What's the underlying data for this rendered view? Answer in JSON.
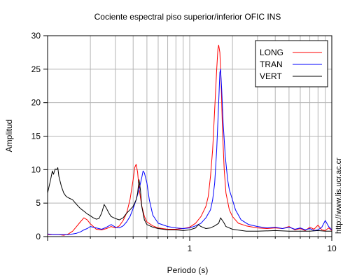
{
  "chart_data": {
    "type": "line",
    "title": "Cociente espectral piso superior/inferior  OFIC INS",
    "xlabel": "Periodo (s)",
    "ylabel": "Amplitud",
    "xscale": "log",
    "xlim": [
      0.1,
      10
    ],
    "ylim": [
      0,
      30
    ],
    "x_tick_labels": [
      {
        "value": 1,
        "label": "1"
      },
      {
        "value": 10,
        "label": "10"
      }
    ],
    "y_ticks": [
      0,
      5,
      10,
      15,
      20,
      25,
      30
    ],
    "grid": true,
    "legend": {
      "placement": "top-right"
    },
    "credit": "http://www.lis.ucr.ac.cr",
    "series": [
      {
        "name": "LONG",
        "color": "#ff0000",
        "points": [
          [
            0.1,
            0.3
          ],
          [
            0.11,
            0.3
          ],
          [
            0.12,
            0.3
          ],
          [
            0.13,
            0.2
          ],
          [
            0.14,
            0.4
          ],
          [
            0.15,
            0.8
          ],
          [
            0.16,
            1.5
          ],
          [
            0.17,
            2.2
          ],
          [
            0.18,
            2.8
          ],
          [
            0.19,
            2.5
          ],
          [
            0.2,
            1.9
          ],
          [
            0.21,
            1.5
          ],
          [
            0.22,
            1.1
          ],
          [
            0.24,
            1.0
          ],
          [
            0.26,
            1.2
          ],
          [
            0.28,
            1.5
          ],
          [
            0.3,
            1.3
          ],
          [
            0.32,
            1.6
          ],
          [
            0.34,
            2.4
          ],
          [
            0.36,
            3.5
          ],
          [
            0.38,
            5.5
          ],
          [
            0.4,
            8.5
          ],
          [
            0.41,
            10.3
          ],
          [
            0.42,
            10.8
          ],
          [
            0.43,
            9.6
          ],
          [
            0.44,
            7.2
          ],
          [
            0.46,
            4.6
          ],
          [
            0.48,
            3.0
          ],
          [
            0.5,
            2.2
          ],
          [
            0.55,
            1.6
          ],
          [
            0.6,
            1.3
          ],
          [
            0.7,
            1.1
          ],
          [
            0.8,
            1.1
          ],
          [
            0.9,
            1.2
          ],
          [
            1.0,
            1.4
          ],
          [
            1.1,
            2.0
          ],
          [
            1.2,
            3.0
          ],
          [
            1.3,
            4.5
          ],
          [
            1.35,
            6.0
          ],
          [
            1.4,
            9.0
          ],
          [
            1.45,
            13.0
          ],
          [
            1.5,
            19.0
          ],
          [
            1.55,
            25.0
          ],
          [
            1.58,
            28.0
          ],
          [
            1.6,
            28.6
          ],
          [
            1.63,
            27.5
          ],
          [
            1.67,
            22.0
          ],
          [
            1.7,
            16.0
          ],
          [
            1.75,
            10.0
          ],
          [
            1.8,
            6.5
          ],
          [
            1.9,
            4.0
          ],
          [
            2.0,
            3.0
          ],
          [
            2.2,
            2.0
          ],
          [
            2.5,
            1.6
          ],
          [
            3.0,
            1.3
          ],
          [
            3.5,
            1.2
          ],
          [
            4.0,
            1.3
          ],
          [
            4.5,
            1.2
          ],
          [
            5.0,
            1.5
          ],
          [
            5.5,
            1.0
          ],
          [
            6.0,
            1.2
          ],
          [
            6.5,
            0.9
          ],
          [
            7.0,
            1.4
          ],
          [
            7.5,
            1.1
          ],
          [
            8.0,
            1.7
          ],
          [
            8.5,
            1.0
          ],
          [
            9.0,
            0.9
          ],
          [
            9.5,
            1.3
          ],
          [
            10.0,
            0.9
          ]
        ]
      },
      {
        "name": "TRAN",
        "color": "#0000ff",
        "points": [
          [
            0.1,
            0.4
          ],
          [
            0.11,
            0.3
          ],
          [
            0.12,
            0.3
          ],
          [
            0.13,
            0.3
          ],
          [
            0.14,
            0.3
          ],
          [
            0.15,
            0.4
          ],
          [
            0.16,
            0.5
          ],
          [
            0.17,
            0.7
          ],
          [
            0.18,
            1.0
          ],
          [
            0.19,
            1.2
          ],
          [
            0.2,
            1.5
          ],
          [
            0.21,
            1.4
          ],
          [
            0.22,
            1.3
          ],
          [
            0.24,
            1.1
          ],
          [
            0.26,
            1.4
          ],
          [
            0.28,
            1.8
          ],
          [
            0.3,
            1.4
          ],
          [
            0.32,
            1.3
          ],
          [
            0.34,
            1.6
          ],
          [
            0.36,
            2.2
          ],
          [
            0.38,
            3.0
          ],
          [
            0.4,
            4.2
          ],
          [
            0.42,
            5.5
          ],
          [
            0.44,
            7.0
          ],
          [
            0.46,
            8.8
          ],
          [
            0.47,
            9.8
          ],
          [
            0.48,
            9.5
          ],
          [
            0.5,
            8.0
          ],
          [
            0.52,
            5.5
          ],
          [
            0.55,
            3.2
          ],
          [
            0.6,
            2.0
          ],
          [
            0.7,
            1.5
          ],
          [
            0.8,
            1.3
          ],
          [
            0.9,
            1.2
          ],
          [
            1.0,
            1.3
          ],
          [
            1.1,
            1.6
          ],
          [
            1.2,
            2.0
          ],
          [
            1.3,
            2.8
          ],
          [
            1.4,
            4.0
          ],
          [
            1.45,
            5.5
          ],
          [
            1.5,
            8.0
          ],
          [
            1.55,
            13.0
          ],
          [
            1.6,
            20.0
          ],
          [
            1.63,
            24.5
          ],
          [
            1.65,
            25.0
          ],
          [
            1.68,
            22.0
          ],
          [
            1.72,
            17.0
          ],
          [
            1.78,
            12.0
          ],
          [
            1.85,
            8.5
          ],
          [
            1.9,
            7.0
          ],
          [
            2.0,
            5.5
          ],
          [
            2.1,
            4.0
          ],
          [
            2.3,
            2.5
          ],
          [
            2.6,
            1.8
          ],
          [
            3.0,
            1.5
          ],
          [
            3.5,
            1.3
          ],
          [
            4.0,
            1.4
          ],
          [
            4.5,
            1.2
          ],
          [
            5.0,
            1.4
          ],
          [
            5.5,
            1.1
          ],
          [
            6.0,
            1.3
          ],
          [
            6.5,
            1.0
          ],
          [
            7.0,
            1.2
          ],
          [
            7.5,
            0.9
          ],
          [
            8.0,
            1.0
          ],
          [
            8.5,
            1.4
          ],
          [
            9.0,
            2.4
          ],
          [
            9.5,
            1.5
          ],
          [
            10.0,
            1.0
          ]
        ]
      },
      {
        "name": "VERT",
        "color": "#000000",
        "points": [
          [
            0.1,
            6.5
          ],
          [
            0.102,
            7.3
          ],
          [
            0.105,
            8.5
          ],
          [
            0.108,
            9.8
          ],
          [
            0.11,
            9.3
          ],
          [
            0.113,
            10.1
          ],
          [
            0.116,
            10.0
          ],
          [
            0.118,
            10.3
          ],
          [
            0.12,
            9.0
          ],
          [
            0.125,
            7.5
          ],
          [
            0.13,
            6.5
          ],
          [
            0.135,
            6.0
          ],
          [
            0.14,
            5.8
          ],
          [
            0.15,
            5.5
          ],
          [
            0.16,
            4.8
          ],
          [
            0.17,
            4.2
          ],
          [
            0.18,
            3.8
          ],
          [
            0.19,
            3.4
          ],
          [
            0.2,
            3.1
          ],
          [
            0.21,
            2.8
          ],
          [
            0.22,
            2.6
          ],
          [
            0.23,
            2.7
          ],
          [
            0.24,
            3.5
          ],
          [
            0.25,
            4.8
          ],
          [
            0.26,
            4.2
          ],
          [
            0.27,
            3.5
          ],
          [
            0.28,
            3.0
          ],
          [
            0.3,
            2.7
          ],
          [
            0.32,
            2.5
          ],
          [
            0.34,
            2.8
          ],
          [
            0.36,
            3.5
          ],
          [
            0.38,
            4.0
          ],
          [
            0.4,
            4.5
          ],
          [
            0.42,
            5.5
          ],
          [
            0.43,
            6.5
          ],
          [
            0.44,
            8.5
          ],
          [
            0.45,
            7.0
          ],
          [
            0.46,
            4.5
          ],
          [
            0.48,
            2.5
          ],
          [
            0.5,
            1.8
          ],
          [
            0.55,
            1.4
          ],
          [
            0.6,
            1.2
          ],
          [
            0.7,
            1.0
          ],
          [
            0.8,
            1.0
          ],
          [
            0.9,
            0.9
          ],
          [
            1.0,
            1.0
          ],
          [
            1.1,
            1.3
          ],
          [
            1.15,
            1.8
          ],
          [
            1.2,
            1.5
          ],
          [
            1.3,
            1.2
          ],
          [
            1.4,
            1.3
          ],
          [
            1.5,
            1.6
          ],
          [
            1.6,
            2.0
          ],
          [
            1.65,
            2.8
          ],
          [
            1.7,
            2.4
          ],
          [
            1.75,
            2.0
          ],
          [
            1.8,
            1.5
          ],
          [
            2.0,
            1.1
          ],
          [
            2.5,
            0.8
          ],
          [
            3.0,
            0.8
          ],
          [
            4.0,
            0.9
          ],
          [
            5.0,
            0.8
          ],
          [
            6.0,
            0.8
          ],
          [
            7.0,
            0.8
          ],
          [
            8.0,
            0.9
          ],
          [
            9.0,
            0.8
          ],
          [
            10.0,
            0.8
          ]
        ]
      }
    ]
  }
}
